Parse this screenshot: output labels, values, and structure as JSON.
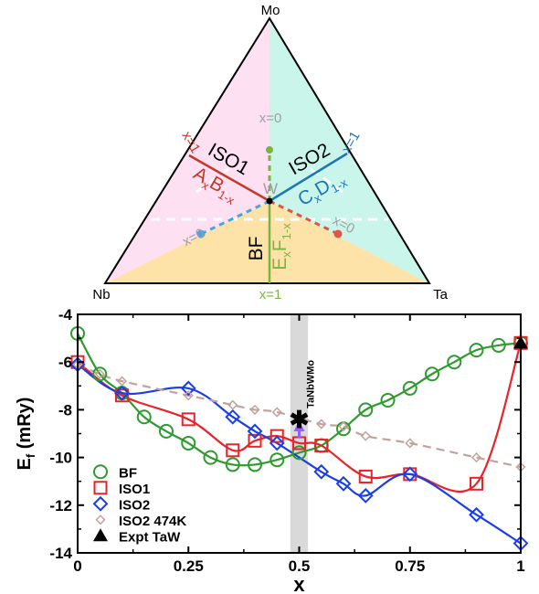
{
  "ternary": {
    "vertices": {
      "top": "Mo",
      "left": "Nb",
      "right": "Ta"
    },
    "region_labels": {
      "iso1": "ISO1",
      "iso2": "ISO2",
      "bf": "BF",
      "w": "W"
    },
    "x_labels": {
      "iso1_end": "x=1",
      "iso2_end": "x=1",
      "center_top": "x=0",
      "left_end": "x=0",
      "right_end": "x=0",
      "bottom_end": "x=1"
    },
    "formula_iso1": {
      "a": "A",
      "b": "B",
      "sub_x": "x",
      "sub_1x": "1-x"
    },
    "formula_iso2": {
      "a": "C",
      "b": "D",
      "sub_x": "x",
      "sub_1x": "1-x"
    },
    "formula_bf": {
      "a": "E",
      "b": "F",
      "sub_x": "x",
      "sub_1x": "1-x"
    },
    "colors": {
      "iso1_region": "#fde0f2",
      "iso2_region": "#c9f5ea",
      "bf_region": "#fde3a8",
      "iso1_line": "#c0392b",
      "iso2_line": "#1f77b4",
      "bf_line": "#7cb342",
      "gray_text": "#a0a0a0"
    }
  },
  "annotation": {
    "label": "TaNbWMo",
    "x": 0.5,
    "y": -8.4,
    "band": [
      0.48,
      0.52
    ],
    "arrow_from": -9.2,
    "arrow_to": -8.6,
    "arrow_color": "#9b59ff"
  },
  "chart_data": {
    "type": "line",
    "xlabel": "x",
    "ylabel": "E",
    "ylabel_sub": "f",
    "ylabel_unit": " (mRy)",
    "xlim": [
      0,
      1
    ],
    "ylim": [
      -14,
      -4
    ],
    "xticks": [
      0,
      0.25,
      0.5,
      0.75,
      1
    ],
    "xtick_labels": [
      "0",
      "0.25",
      "0.5",
      "0.75",
      "1"
    ],
    "yticks": [
      -14,
      -12,
      -10,
      -8,
      -6,
      -4
    ],
    "ytick_labels": [
      "-14",
      "-12",
      "-10",
      "-8",
      "-6",
      "-4"
    ],
    "legend_position": "bottom-left",
    "series": [
      {
        "name": "BF",
        "color": "#2e9b2e",
        "marker": "circle",
        "dashed": false,
        "x": [
          0,
          0.05,
          0.1,
          0.15,
          0.2,
          0.25,
          0.3,
          0.35,
          0.4,
          0.45,
          0.5,
          0.55,
          0.6,
          0.65,
          0.7,
          0.75,
          0.8,
          0.85,
          0.9,
          0.95,
          1
        ],
        "y": [
          -4.8,
          -6.5,
          -7.3,
          -8.3,
          -8.9,
          -9.4,
          -10.0,
          -10.3,
          -10.3,
          -10.1,
          -9.8,
          -9.5,
          -8.8,
          -8.0,
          -7.6,
          -7.1,
          -6.5,
          -6.0,
          -5.5,
          -5.3,
          -5.2
        ]
      },
      {
        "name": "ISO1",
        "color": "#e8232a",
        "marker": "square",
        "dashed": false,
        "x": [
          0,
          0.1,
          0.25,
          0.35,
          0.4,
          0.45,
          0.5,
          0.55,
          0.65,
          0.75,
          0.9,
          1
        ],
        "y": [
          -6.0,
          -7.4,
          -8.4,
          -9.7,
          -9.3,
          -9.1,
          -9.4,
          -9.5,
          -10.8,
          -10.7,
          -11.1,
          -5.2
        ]
      },
      {
        "name": "ISO2",
        "color": "#1a3fe6",
        "marker": "diamond",
        "dashed": false,
        "x": [
          0,
          0.1,
          0.25,
          0.35,
          0.4,
          0.45,
          0.55,
          0.6,
          0.65,
          0.75,
          0.9,
          1
        ],
        "y": [
          -6.1,
          -7.3,
          -7.1,
          -8.3,
          -8.9,
          -9.4,
          -10.6,
          -11.1,
          -11.6,
          -10.7,
          -12.4,
          -13.6
        ]
      },
      {
        "name": "ISO2 474K",
        "color": "#c2a29c",
        "marker": "diamond-small",
        "dashed": true,
        "x": [
          0,
          0.05,
          0.1,
          0.25,
          0.35,
          0.4,
          0.45,
          0.55,
          0.6,
          0.65,
          0.75,
          0.9,
          1
        ],
        "y": [
          -6.1,
          -6.5,
          -6.8,
          -7.4,
          -7.8,
          -8.0,
          -8.1,
          -8.6,
          -8.7,
          -9.1,
          -9.4,
          -10.0,
          -10.4
        ]
      },
      {
        "name": "Expt TaW",
        "color": "#000000",
        "marker": "triangle",
        "dashed": false,
        "no_line": true,
        "x": [
          1
        ],
        "y": [
          -5.2
        ]
      }
    ]
  }
}
